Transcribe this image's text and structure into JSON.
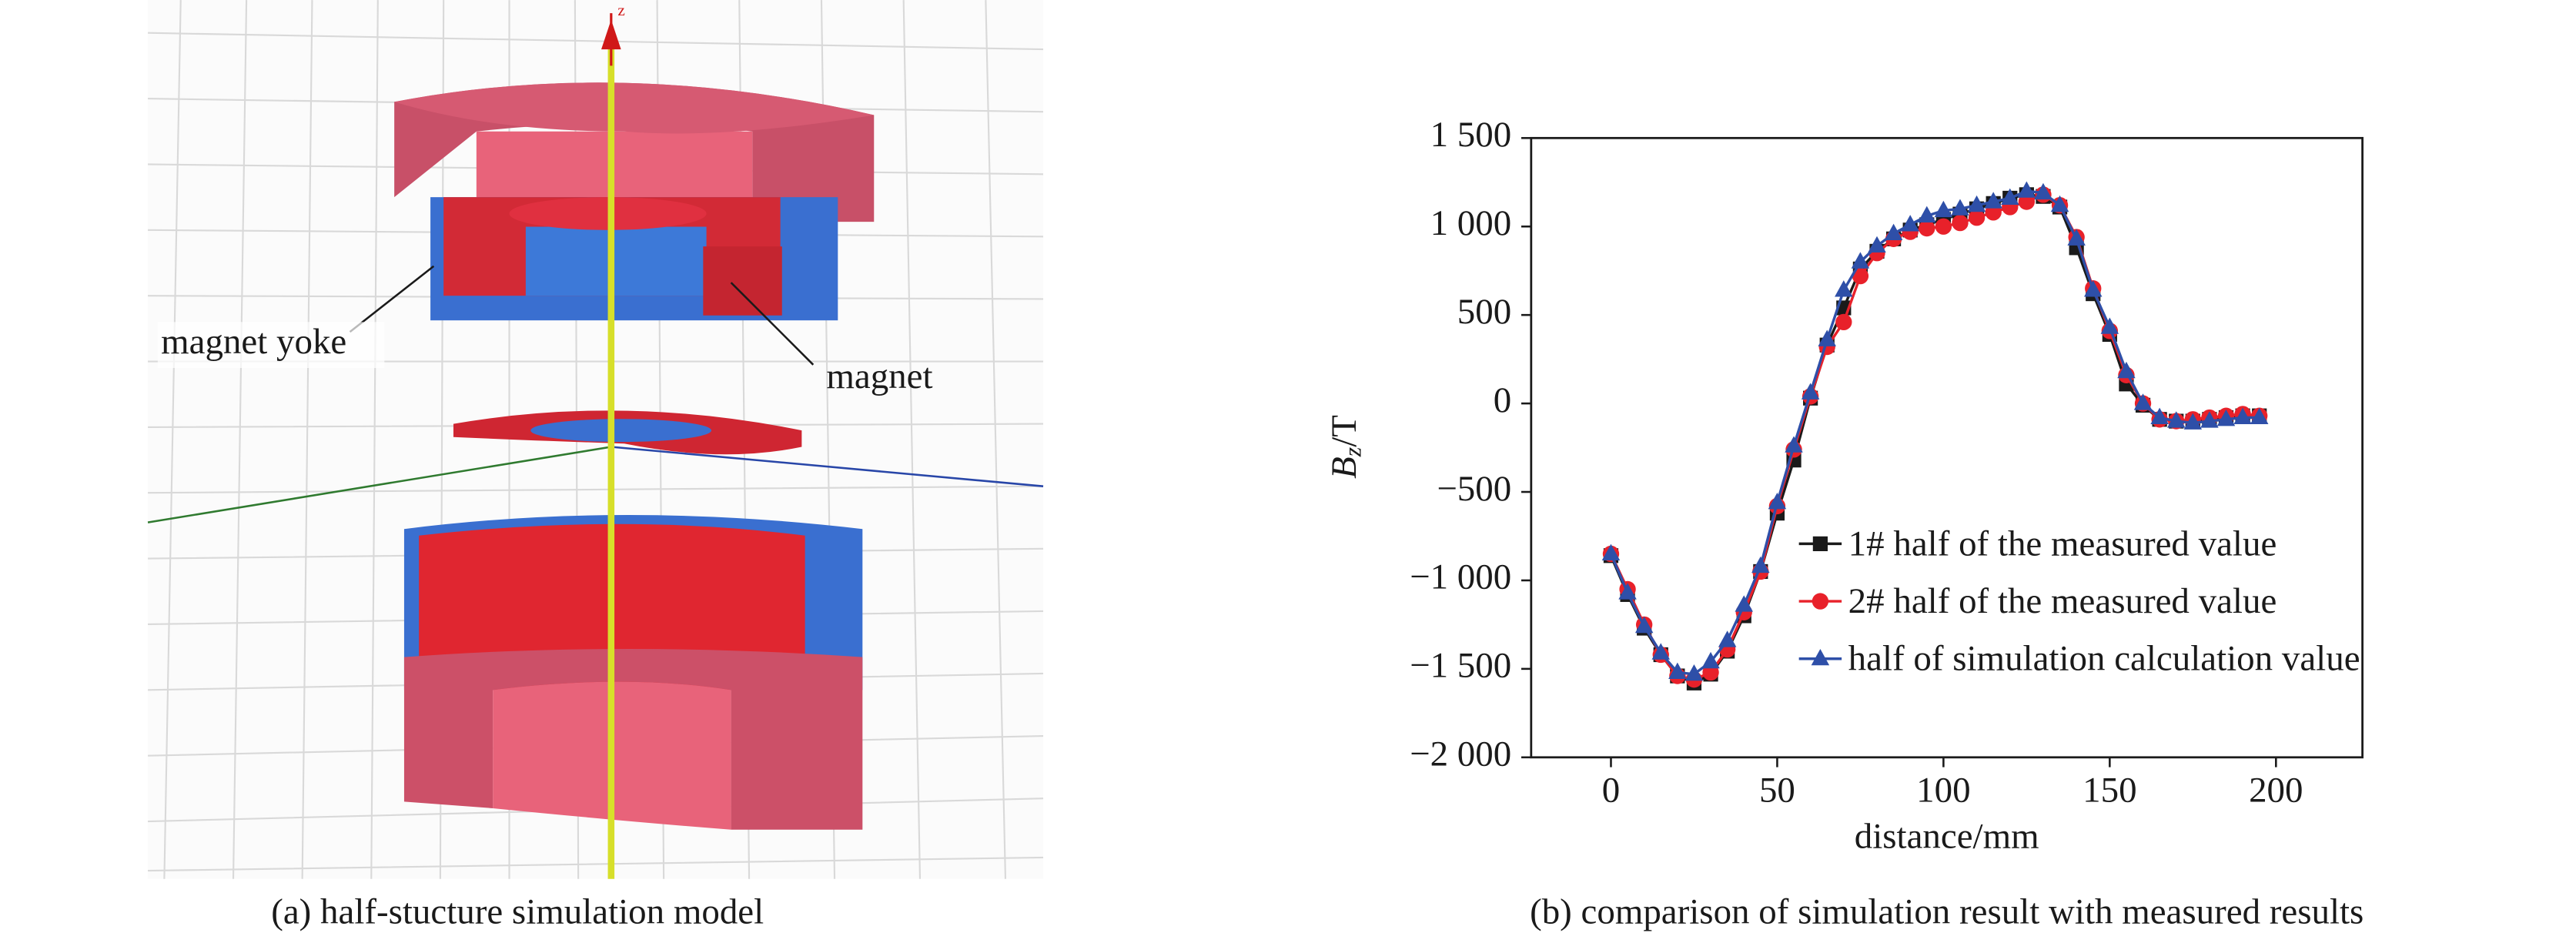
{
  "figure": {
    "panel_a": {
      "axis_label": "z",
      "labels": [
        "magnet yoke",
        "magnet"
      ],
      "caption": "(a) half-stucture simulation model"
    }
  },
  "chart_data": {
    "type": "line",
    "caption": "(b) comparison of simulation result with measured results",
    "xlabel": "distance/mm",
    "ylabel": [
      "B",
      "z",
      "/T"
    ],
    "x": [
      0,
      5,
      10,
      15,
      20,
      25,
      30,
      35,
      40,
      45,
      50,
      55,
      60,
      65,
      70,
      75,
      80,
      85,
      90,
      95,
      100,
      105,
      110,
      115,
      120,
      125,
      130,
      135,
      140,
      145,
      150,
      155,
      160,
      165,
      170,
      175,
      180,
      185,
      190,
      195
    ],
    "series": [
      {
        "name": "1# half of the measured value",
        "color": "#1a1a1a",
        "marker": "square",
        "values": [
          -860,
          -1080,
          -1270,
          -1420,
          -1540,
          -1580,
          -1530,
          -1400,
          -1200,
          -950,
          -620,
          -320,
          30,
          330,
          540,
          760,
          860,
          930,
          980,
          1010,
          1040,
          1070,
          1100,
          1130,
          1160,
          1180,
          1170,
          1110,
          880,
          620,
          390,
          110,
          -10,
          -90,
          -100,
          -100,
          -90,
          -80,
          -70,
          -70
        ]
      },
      {
        "name": "2# half of the measured value",
        "color": "#e8212a",
        "marker": "circle",
        "values": [
          -850,
          -1050,
          -1250,
          -1420,
          -1540,
          -1560,
          -1520,
          -1390,
          -1180,
          -950,
          -580,
          -260,
          40,
          320,
          460,
          720,
          850,
          930,
          970,
          990,
          1000,
          1020,
          1050,
          1080,
          1110,
          1140,
          1180,
          1120,
          940,
          650,
          410,
          160,
          0,
          -90,
          -100,
          -90,
          -80,
          -70,
          -60,
          -70
        ]
      },
      {
        "name": "half of simulation calculation value",
        "color": "#2e4fa8",
        "marker": "triangle",
        "values": [
          -850,
          -1070,
          -1260,
          -1410,
          -1520,
          -1530,
          -1460,
          -1340,
          -1140,
          -920,
          -560,
          -240,
          60,
          360,
          640,
          800,
          890,
          960,
          1010,
          1060,
          1090,
          1100,
          1120,
          1140,
          1160,
          1200,
          1190,
          1120,
          930,
          640,
          430,
          180,
          0,
          -80,
          -100,
          -110,
          -100,
          -90,
          -80,
          -80
        ]
      }
    ],
    "xlim": [
      -24,
      226
    ],
    "xticks": [
      0,
      50,
      100,
      150,
      200
    ],
    "ylim": [
      -2000,
      1500
    ],
    "yticks": [
      {
        "value": -2000,
        "label": "−2 000"
      },
      {
        "value": -1500,
        "label": "−1 500"
      },
      {
        "value": -1000,
        "label": "−1 000"
      },
      {
        "value": -500,
        "label": "−500"
      },
      0,
      500,
      {
        "value": 1000,
        "label": "1 000"
      },
      {
        "value": 1500,
        "label": "1 500"
      }
    ],
    "legend": "lower center",
    "grid": false
  }
}
